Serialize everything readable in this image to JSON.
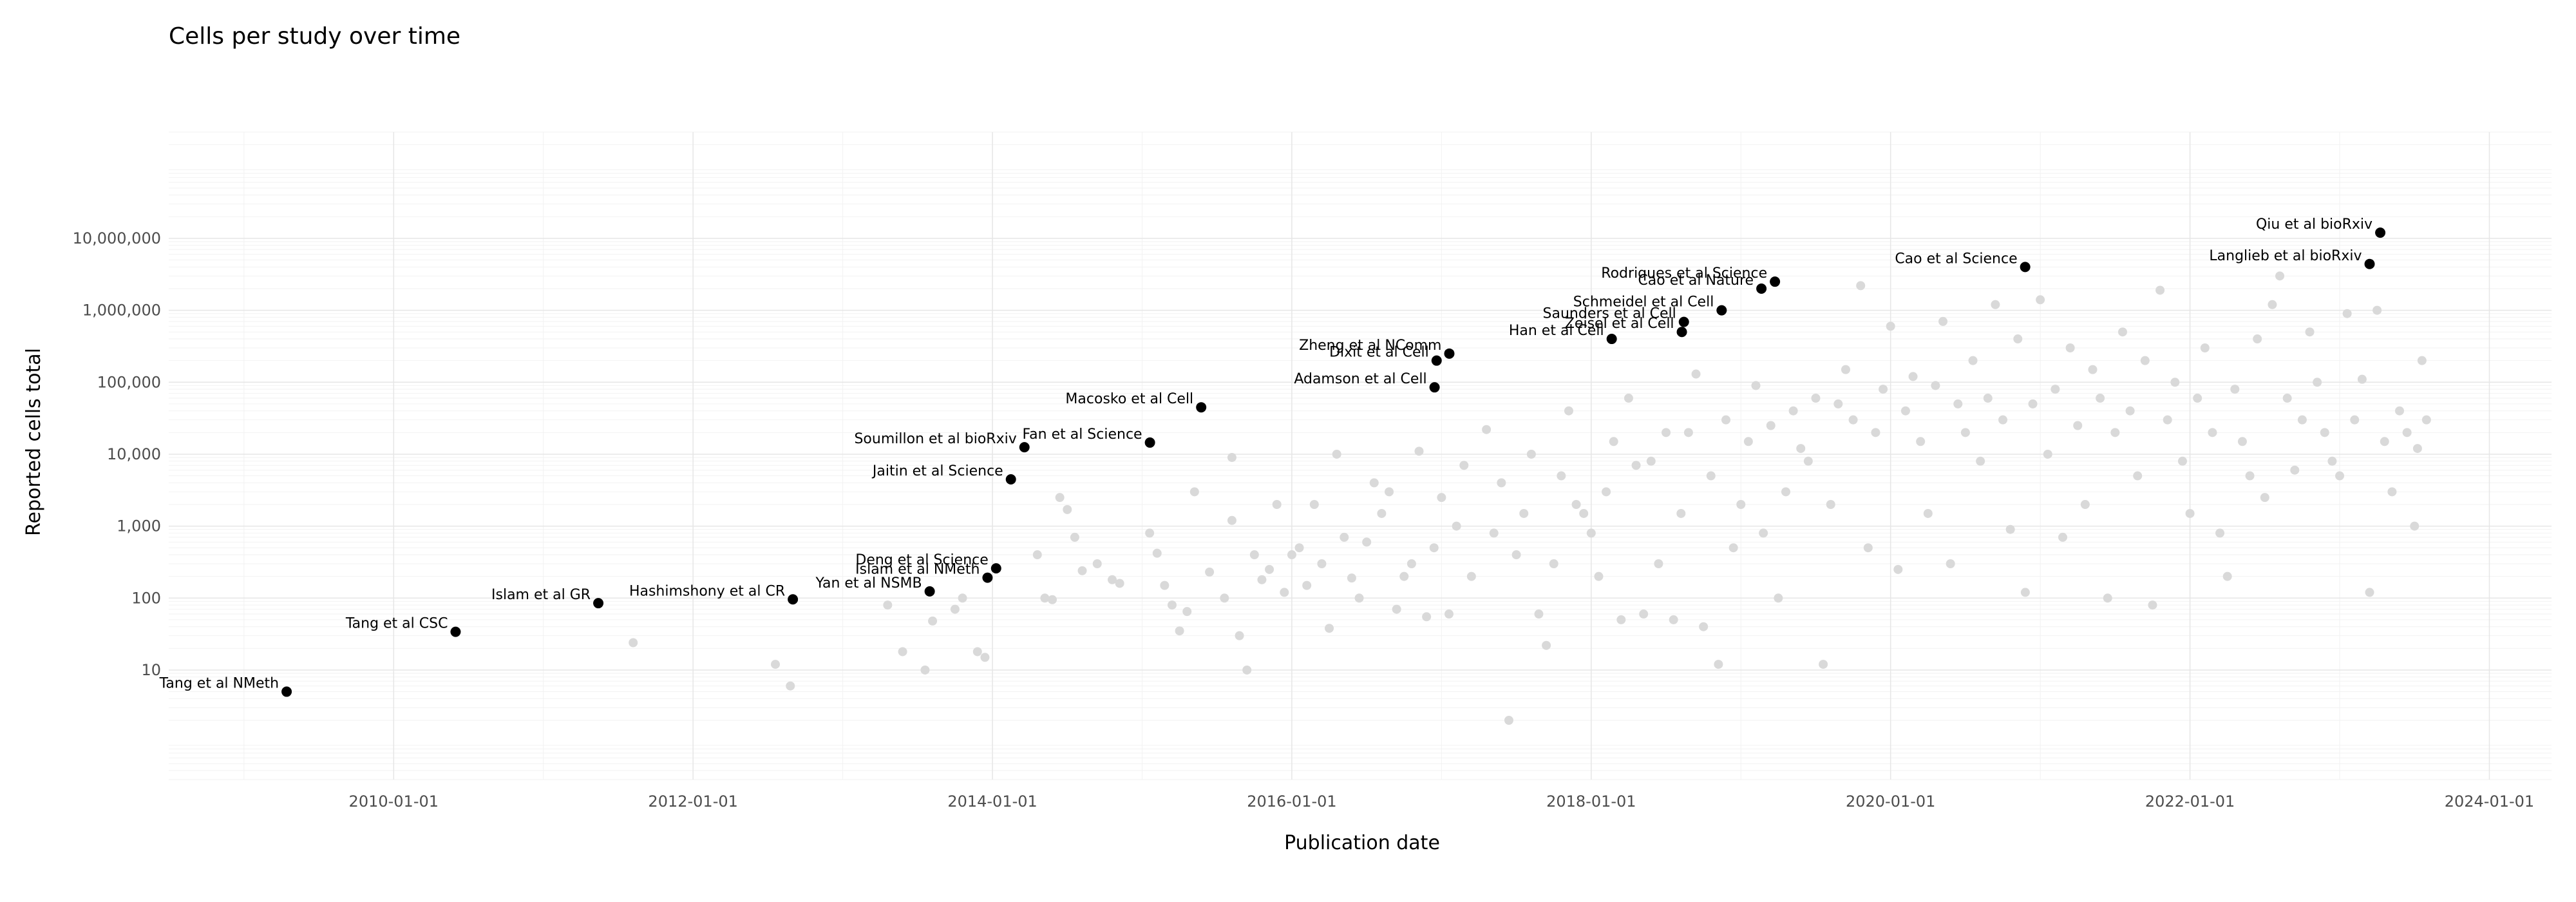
{
  "chart_data": {
    "type": "scatter",
    "title": "Cells per study over time",
    "xlabel": "Publication date",
    "ylabel": "Reported cells total",
    "x_type": "date",
    "xlim": [
      "2008-07-01",
      "2024-06-01"
    ],
    "ylim": [
      0.3,
      300000000
    ],
    "y_scale": "log",
    "grid": true,
    "legend": "none",
    "x_ticks": [
      "2010-01-01",
      "2012-01-01",
      "2014-01-01",
      "2016-01-01",
      "2018-01-01",
      "2020-01-01",
      "2022-01-01",
      "2024-01-01"
    ],
    "y_ticks": [
      {
        "value": 10,
        "label": "10"
      },
      {
        "value": 100,
        "label": "100"
      },
      {
        "value": 1000,
        "label": "1,000"
      },
      {
        "value": 10000,
        "label": "10,000"
      },
      {
        "value": 100000,
        "label": "100,000"
      },
      {
        "value": 1000000,
        "label": "1,000,000"
      },
      {
        "value": 10000000,
        "label": "10,000,000"
      }
    ],
    "colors": {
      "highlight": "#000000",
      "other": "#d9d9d9"
    },
    "highlighted": [
      {
        "label": "Tang et al NMeth",
        "x": "2009-04-15",
        "y": 5
      },
      {
        "label": "Tang et al CSC",
        "x": "2010-06-01",
        "y": 34
      },
      {
        "label": "Islam et al GR",
        "x": "2011-05-15",
        "y": 85
      },
      {
        "label": "Hashimshony et al CR",
        "x": "2012-09-01",
        "y": 96
      },
      {
        "label": "Yan et al NSMB",
        "x": "2013-08-01",
        "y": 124
      },
      {
        "label": "Islam et al NMeth",
        "x": "2013-12-20",
        "y": 192
      },
      {
        "label": "Deng et al Science",
        "x": "2014-01-10",
        "y": 259
      },
      {
        "label": "Jaitin et al Science",
        "x": "2014-02-15",
        "y": 4468
      },
      {
        "label": "Soumillon et al bioRxiv",
        "x": "2014-03-20",
        "y": 12500
      },
      {
        "label": "Fan et al Science",
        "x": "2015-01-20",
        "y": 14500
      },
      {
        "label": "Macosko et al Cell",
        "x": "2015-05-25",
        "y": 44808
      },
      {
        "label": "Adamson et al Cell",
        "x": "2016-12-15",
        "y": 85000
      },
      {
        "label": "Dixit et al Cell",
        "x": "2016-12-20",
        "y": 200000
      },
      {
        "label": "Zheng et al NComm",
        "x": "2017-01-20",
        "y": 250000
      },
      {
        "label": "Han et al Cell",
        "x": "2018-02-20",
        "y": 400000
      },
      {
        "label": "Zeisel et al Cell",
        "x": "2018-08-10",
        "y": 500000
      },
      {
        "label": "Saunders et al Cell",
        "x": "2018-08-15",
        "y": 690000
      },
      {
        "label": "Schmeidel et al Cell",
        "x": "2018-11-15",
        "y": 1000000
      },
      {
        "label": "Cao et al Nature",
        "x": "2019-02-20",
        "y": 2000000
      },
      {
        "label": "Rodriques et al Science",
        "x": "2019-03-25",
        "y": 2500000
      },
      {
        "label": "Cao et al Science",
        "x": "2020-11-25",
        "y": 4000000
      },
      {
        "label": "Langlieb et al bioRxiv",
        "x": "2023-03-15",
        "y": 4400000
      },
      {
        "label": "Qiu et al bioRxiv",
        "x": "2023-04-10",
        "y": 12000000
      }
    ],
    "other_points": [
      [
        2011.6,
        24
      ],
      [
        2012.55,
        12
      ],
      [
        2012.65,
        6
      ],
      [
        2013.3,
        80
      ],
      [
        2013.4,
        18
      ],
      [
        2013.55,
        10
      ],
      [
        2013.6,
        48
      ],
      [
        2013.75,
        70
      ],
      [
        2013.8,
        100
      ],
      [
        2013.9,
        18
      ],
      [
        2013.95,
        15
      ],
      [
        2014.3,
        400
      ],
      [
        2014.35,
        100
      ],
      [
        2014.4,
        95
      ],
      [
        2014.45,
        2500
      ],
      [
        2014.5,
        1700
      ],
      [
        2014.55,
        700
      ],
      [
        2014.6,
        240
      ],
      [
        2014.7,
        300
      ],
      [
        2014.8,
        180
      ],
      [
        2014.85,
        160
      ],
      [
        2015.05,
        800
      ],
      [
        2015.1,
        420
      ],
      [
        2015.15,
        150
      ],
      [
        2015.2,
        80
      ],
      [
        2015.25,
        35
      ],
      [
        2015.3,
        65
      ],
      [
        2015.35,
        3000
      ],
      [
        2015.45,
        230
      ],
      [
        2015.55,
        100
      ],
      [
        2015.6,
        9000
      ],
      [
        2015.6,
        1200
      ],
      [
        2015.65,
        30
      ],
      [
        2015.7,
        10
      ],
      [
        2015.75,
        400
      ],
      [
        2015.8,
        180
      ],
      [
        2015.85,
        250
      ],
      [
        2015.9,
        2000
      ],
      [
        2015.95,
        120
      ],
      [
        2016.0,
        400
      ],
      [
        2016.05,
        500
      ],
      [
        2016.1,
        150
      ],
      [
        2016.15,
        2000
      ],
      [
        2016.2,
        300
      ],
      [
        2016.25,
        38
      ],
      [
        2016.3,
        10000
      ],
      [
        2016.35,
        700
      ],
      [
        2016.4,
        190
      ],
      [
        2016.45,
        100
      ],
      [
        2016.5,
        600
      ],
      [
        2016.55,
        4000
      ],
      [
        2016.6,
        1500
      ],
      [
        2016.65,
        3000
      ],
      [
        2016.7,
        70
      ],
      [
        2016.75,
        200
      ],
      [
        2016.8,
        300
      ],
      [
        2016.85,
        11000
      ],
      [
        2016.9,
        55
      ],
      [
        2016.95,
        500
      ],
      [
        2017.0,
        2500
      ],
      [
        2017.05,
        60
      ],
      [
        2017.1,
        1000
      ],
      [
        2017.15,
        7000
      ],
      [
        2017.2,
        200
      ],
      [
        2017.3,
        22000
      ],
      [
        2017.35,
        800
      ],
      [
        2017.4,
        4000
      ],
      [
        2017.45,
        2
      ],
      [
        2017.5,
        400
      ],
      [
        2017.55,
        1500
      ],
      [
        2017.6,
        10000
      ],
      [
        2017.65,
        60
      ],
      [
        2017.7,
        22
      ],
      [
        2017.75,
        300
      ],
      [
        2017.8,
        5000
      ],
      [
        2017.85,
        40000
      ],
      [
        2017.9,
        2000
      ],
      [
        2017.95,
        1500
      ],
      [
        2018.0,
        800
      ],
      [
        2018.05,
        200
      ],
      [
        2018.1,
        3000
      ],
      [
        2018.15,
        15000
      ],
      [
        2018.2,
        50
      ],
      [
        2018.25,
        60000
      ],
      [
        2018.3,
        7000
      ],
      [
        2018.35,
        60
      ],
      [
        2018.4,
        8000
      ],
      [
        2018.45,
        300
      ],
      [
        2018.5,
        20000
      ],
      [
        2018.55,
        50
      ],
      [
        2018.6,
        1500
      ],
      [
        2018.65,
        20000
      ],
      [
        2018.7,
        130000
      ],
      [
        2018.75,
        40
      ],
      [
        2018.8,
        5000
      ],
      [
        2018.85,
        12
      ],
      [
        2018.9,
        30000
      ],
      [
        2018.95,
        500
      ],
      [
        2019.0,
        2000
      ],
      [
        2019.05,
        15000
      ],
      [
        2019.1,
        90000
      ],
      [
        2019.15,
        800
      ],
      [
        2019.2,
        25000
      ],
      [
        2019.25,
        100
      ],
      [
        2019.3,
        3000
      ],
      [
        2019.35,
        40000
      ],
      [
        2019.4,
        12000
      ],
      [
        2019.45,
        8000
      ],
      [
        2019.5,
        60000
      ],
      [
        2019.55,
        12
      ],
      [
        2019.6,
        2000
      ],
      [
        2019.65,
        50000
      ],
      [
        2019.7,
        150000
      ],
      [
        2019.75,
        30000
      ],
      [
        2019.8,
        2200000
      ],
      [
        2019.85,
        500
      ],
      [
        2019.9,
        20000
      ],
      [
        2019.95,
        80000
      ],
      [
        2020.0,
        600000
      ],
      [
        2020.05,
        250
      ],
      [
        2020.1,
        40000
      ],
      [
        2020.15,
        120000
      ],
      [
        2020.2,
        15000
      ],
      [
        2020.25,
        1500
      ],
      [
        2020.3,
        90000
      ],
      [
        2020.35,
        700000
      ],
      [
        2020.4,
        300
      ],
      [
        2020.45,
        50000
      ],
      [
        2020.5,
        20000
      ],
      [
        2020.55,
        200000
      ],
      [
        2020.6,
        8000
      ],
      [
        2020.65,
        60000
      ],
      [
        2020.7,
        1200000
      ],
      [
        2020.75,
        30000
      ],
      [
        2020.8,
        900
      ],
      [
        2020.85,
        400000
      ],
      [
        2020.9,
        120
      ],
      [
        2020.95,
        50000
      ],
      [
        2021.0,
        1400000
      ],
      [
        2021.05,
        10000
      ],
      [
        2021.1,
        80000
      ],
      [
        2021.15,
        700
      ],
      [
        2021.2,
        300000
      ],
      [
        2021.25,
        25000
      ],
      [
        2021.3,
        2000
      ],
      [
        2021.35,
        150000
      ],
      [
        2021.4,
        60000
      ],
      [
        2021.45,
        100
      ],
      [
        2021.5,
        20000
      ],
      [
        2021.55,
        500000
      ],
      [
        2021.6,
        40000
      ],
      [
        2021.65,
        5000
      ],
      [
        2021.7,
        200000
      ],
      [
        2021.75,
        80
      ],
      [
        2021.8,
        1900000
      ],
      [
        2021.85,
        30000
      ],
      [
        2021.9,
        100000
      ],
      [
        2021.95,
        8000
      ],
      [
        2022.0,
        1500
      ],
      [
        2022.05,
        60000
      ],
      [
        2022.1,
        300000
      ],
      [
        2022.15,
        20000
      ],
      [
        2022.2,
        800
      ],
      [
        2022.25,
        200
      ],
      [
        2022.3,
        80000
      ],
      [
        2022.35,
        15000
      ],
      [
        2022.4,
        5000
      ],
      [
        2022.45,
        400000
      ],
      [
        2022.5,
        2500
      ],
      [
        2022.55,
        1200000
      ],
      [
        2022.6,
        3000000
      ],
      [
        2022.65,
        60000
      ],
      [
        2022.7,
        6000
      ],
      [
        2022.75,
        30000
      ],
      [
        2022.8,
        500000
      ],
      [
        2022.85,
        100000
      ],
      [
        2022.9,
        20000
      ],
      [
        2022.95,
        8000
      ],
      [
        2023.0,
        5000
      ],
      [
        2023.05,
        900000
      ],
      [
        2023.1,
        30000
      ],
      [
        2023.15,
        110000
      ],
      [
        2023.2,
        120
      ],
      [
        2023.25,
        1000000
      ],
      [
        2023.3,
        15000
      ],
      [
        2023.35,
        3000
      ],
      [
        2023.4,
        40000
      ],
      [
        2023.45,
        20000
      ],
      [
        2023.5,
        1000
      ],
      [
        2023.52,
        12000
      ],
      [
        2023.55,
        200000
      ],
      [
        2023.58,
        30000
      ]
    ]
  }
}
